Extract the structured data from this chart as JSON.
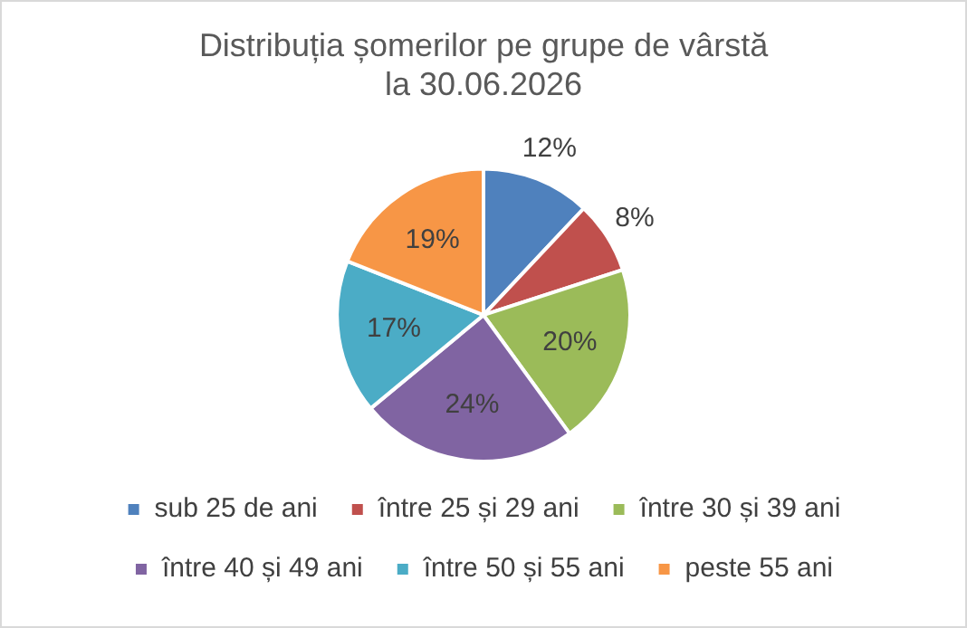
{
  "chart_data": {
    "type": "pie",
    "title": "Distribuția șomerilor pe grupe de vârstă la 30.06.2026",
    "categories": [
      "sub 25 de ani",
      "între 25 și 29 ani",
      "între 30 și 39 ani",
      "între 40 și 49 ani",
      "între 50 și 55 ani",
      "peste 55 ani"
    ],
    "values": [
      12,
      8,
      20,
      24,
      17,
      19
    ],
    "value_labels": [
      "12%",
      "8%",
      "20%",
      "24%",
      "17%",
      "19%"
    ],
    "colors": [
      "#4f81bd",
      "#c0504d",
      "#9bbb59",
      "#8064a2",
      "#4bacc6",
      "#f79646"
    ],
    "legend": "bottom"
  }
}
